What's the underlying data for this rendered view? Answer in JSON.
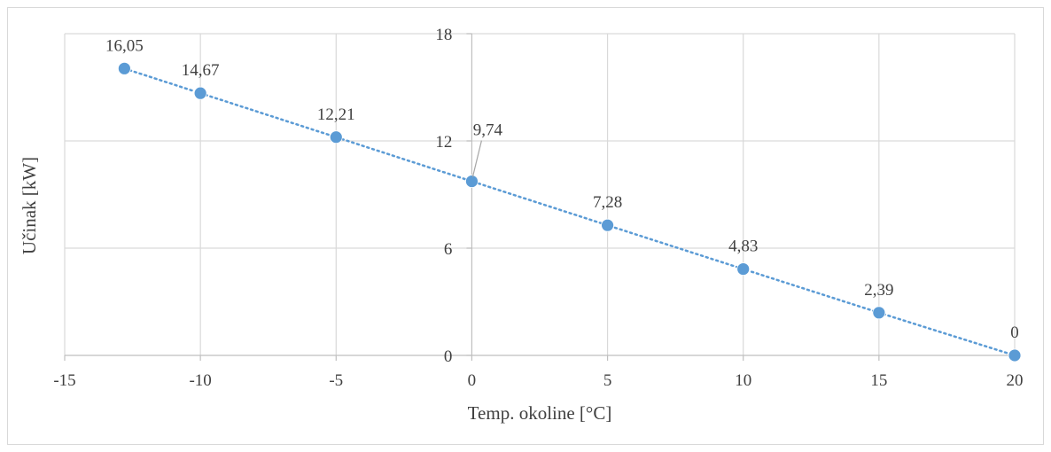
{
  "chart_data": {
    "type": "scatter",
    "title": "",
    "xlabel": "Temp. okoline [°C]",
    "ylabel": "Učinak [kW]",
    "xlim": [
      -15,
      20
    ],
    "ylim": [
      0,
      18
    ],
    "x_ticks": [
      -15,
      -10,
      -5,
      0,
      5,
      10,
      15,
      20
    ],
    "x_tick_labels": [
      "-15",
      "-10",
      "-5",
      "0",
      "5",
      "10",
      "15",
      "20"
    ],
    "y_ticks": [
      0,
      6,
      12,
      18
    ],
    "y_tick_labels": [
      "0",
      "6",
      "12",
      "18"
    ],
    "grid": true,
    "legend": "none",
    "marker_color": "#5b9bd5",
    "line_style": "dotted",
    "series": [
      {
        "x": [
          -12.8,
          -10,
          -5,
          0,
          5,
          10,
          15,
          20
        ],
        "y": [
          16.05,
          14.67,
          12.21,
          9.74,
          7.28,
          4.83,
          2.39,
          0
        ],
        "labels": [
          "16,05",
          "14,67",
          "12,21",
          "9,74",
          "7,28",
          "4,83",
          "2,39",
          "0"
        ]
      }
    ]
  }
}
